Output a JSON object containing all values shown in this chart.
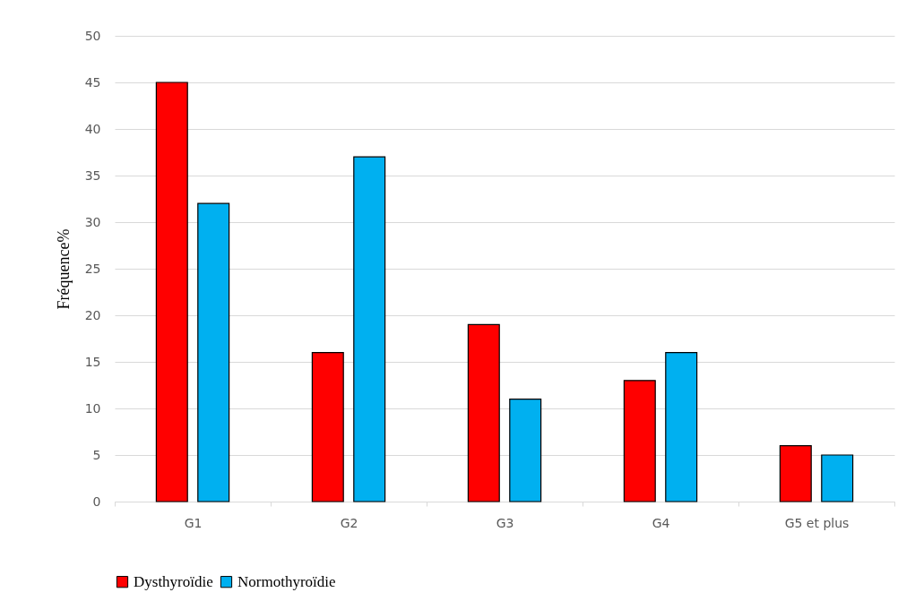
{
  "chart_data": {
    "type": "bar",
    "ylabel": "Fréquence%",
    "categories": [
      "G1",
      "G2",
      "G3",
      "G4",
      "G5 et plus"
    ],
    "series": [
      {
        "name": "Dysthyroïdie",
        "color": "#ff0000",
        "values": [
          45,
          16,
          19,
          13,
          6
        ]
      },
      {
        "name": "Normothyroïdie",
        "color": "#00b0f0",
        "values": [
          32,
          37,
          11,
          16,
          5
        ]
      }
    ],
    "ylim": [
      0,
      50
    ],
    "yticks": [
      0,
      5,
      10,
      15,
      20,
      25,
      30,
      35,
      40,
      45,
      50
    ],
    "grid": "y",
    "legend": "bottom"
  }
}
